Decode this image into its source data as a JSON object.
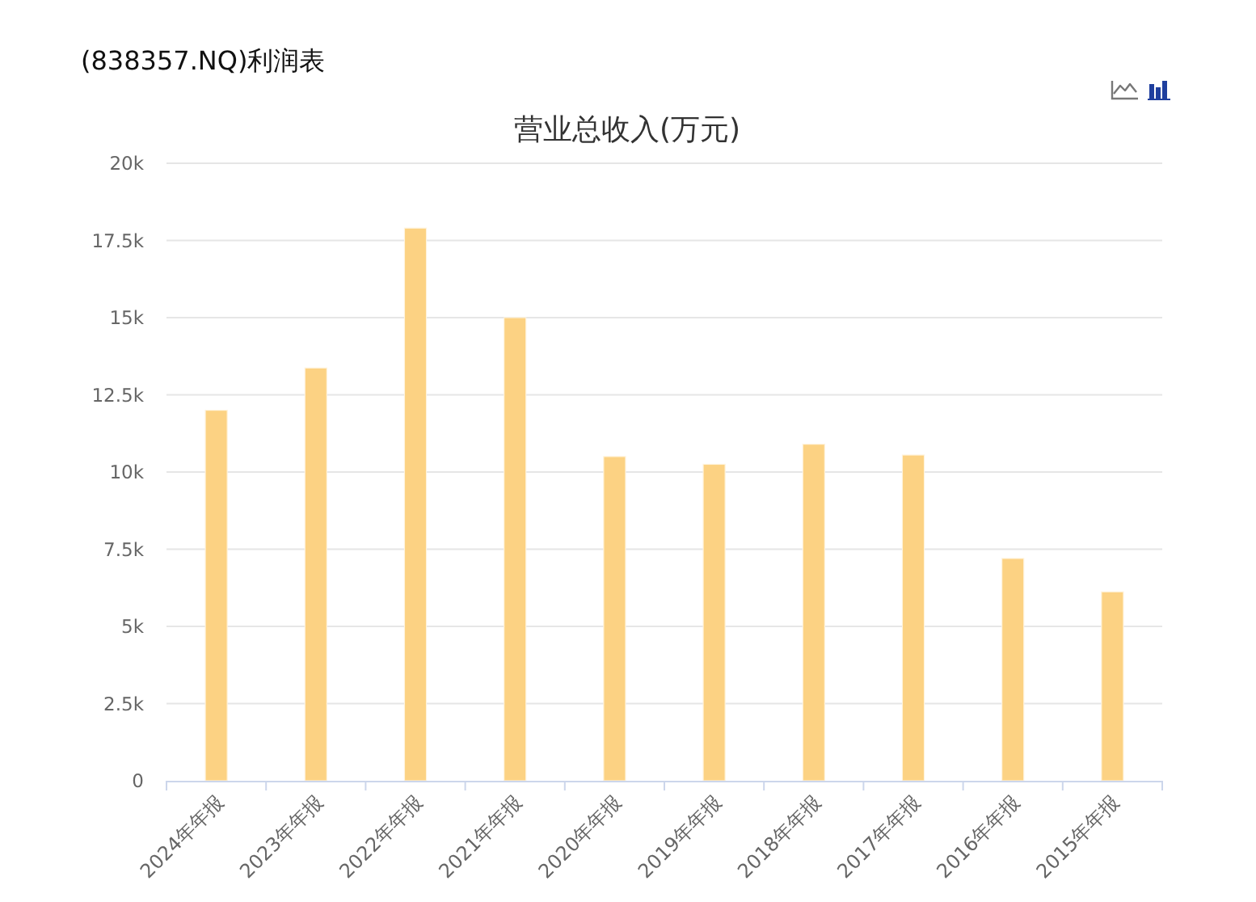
{
  "chart_data": {
    "type": "bar",
    "title": "(838357.NQ)利润表",
    "subtitle": "营业总收入(万元)",
    "categories": [
      "2024年年报",
      "2023年年报",
      "2022年年报",
      "2021年年报",
      "2020年年报",
      "2019年年报",
      "2018年年报",
      "2017年年报",
      "2016年年报",
      "2015年年报"
    ],
    "values": [
      12000,
      13370,
      17900,
      15000,
      10500,
      10250,
      10900,
      10550,
      7200,
      6120
    ],
    "color": "#fcd283",
    "ylim": [
      0,
      20000
    ],
    "yticks": [
      0,
      {
        "value": 2500,
        "label": "2.5k"
      },
      {
        "value": 5000,
        "label": "5k"
      },
      {
        "value": 7500,
        "label": "7.5k"
      },
      {
        "value": 10000,
        "label": "10k"
      },
      {
        "value": 12500,
        "label": "12.5k"
      },
      {
        "value": 15000,
        "label": "15k"
      },
      {
        "value": 17500,
        "label": "17.5k"
      },
      {
        "value": 20000,
        "label": "20k"
      }
    ],
    "grid": "y"
  }
}
